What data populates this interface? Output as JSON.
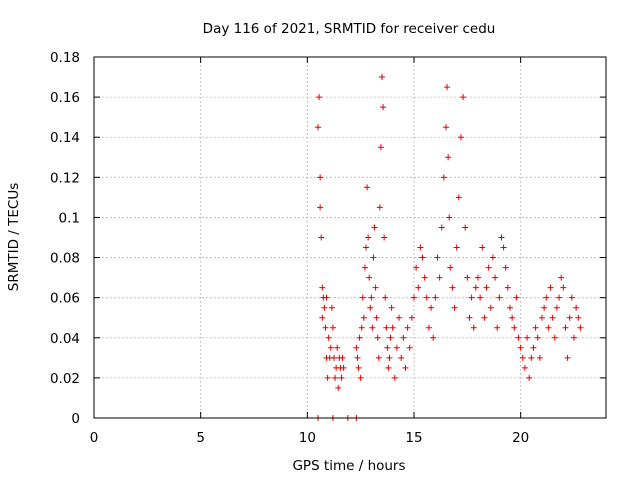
{
  "chart_data": {
    "type": "scatter",
    "title": "Day 116 of 2021, SRMTID for receiver cedu",
    "xlabel": "GPS time / hours",
    "ylabel": "SRMTID / TECUs",
    "xlim": [
      0,
      24
    ],
    "ylim": [
      0,
      0.18
    ],
    "xticks": [
      0,
      5,
      10,
      15,
      20
    ],
    "yticks": [
      0,
      0.02,
      0.04,
      0.06,
      0.08,
      0.1,
      0.12,
      0.14,
      0.16,
      0.18
    ],
    "xtick_labels": [
      "0",
      "5",
      "10",
      "15",
      "20"
    ],
    "ytick_labels": [
      "0",
      "0.02",
      "0.04",
      "0.06",
      "0.08",
      "0.1",
      "0.12",
      "0.14",
      "0.16",
      "0.18"
    ],
    "grid": true,
    "marker": "+",
    "color": "#e00000",
    "series": [
      {
        "name": "SRMTID",
        "x": [
          10.5,
          10.55,
          10.6,
          10.6,
          10.65,
          10.7,
          10.7,
          10.75,
          10.8,
          10.85,
          10.9,
          10.9,
          10.95,
          11.0,
          11.05,
          11.1,
          11.15,
          11.2,
          11.25,
          11.3,
          11.35,
          11.4,
          11.45,
          11.5,
          11.55,
          11.6,
          11.65,
          11.7,
          12.3,
          12.35,
          12.4,
          12.45,
          12.5,
          12.55,
          12.6,
          12.65,
          12.7,
          12.75,
          12.8,
          12.85,
          12.9,
          12.95,
          13.0,
          13.05,
          13.1,
          13.15,
          13.2,
          13.25,
          13.3,
          13.35,
          13.4,
          13.45,
          13.5,
          13.55,
          13.6,
          13.65,
          13.7,
          13.75,
          13.8,
          13.85,
          13.9,
          13.95,
          14.0,
          14.1,
          14.2,
          14.3,
          14.4,
          14.5,
          14.6,
          14.7,
          14.8,
          14.9,
          15.0,
          15.1,
          15.2,
          15.3,
          15.4,
          15.5,
          15.6,
          15.7,
          15.8,
          15.9,
          16.0,
          16.1,
          16.2,
          16.3,
          16.4,
          16.5,
          16.55,
          16.6,
          16.65,
          16.7,
          16.8,
          16.9,
          17.0,
          17.1,
          17.2,
          17.3,
          17.4,
          17.5,
          17.6,
          17.7,
          17.8,
          17.9,
          18.0,
          18.1,
          18.2,
          18.3,
          18.4,
          18.5,
          18.6,
          18.7,
          18.8,
          18.9,
          19.0,
          19.1,
          19.2,
          19.3,
          19.4,
          19.5,
          19.6,
          19.7,
          19.8,
          19.9,
          20.0,
          20.1,
          20.2,
          20.3,
          20.4,
          20.5,
          20.6,
          20.7,
          20.8,
          20.9,
          21.0,
          21.1,
          21.2,
          21.3,
          21.4,
          21.5,
          21.6,
          21.7,
          21.8,
          21.9,
          22.0,
          22.1,
          22.2,
          22.3,
          22.4,
          22.5,
          22.6,
          22.7,
          22.8,
          10.5,
          11.2,
          11.9,
          12.3
        ],
        "y": [
          0.145,
          0.16,
          0.12,
          0.105,
          0.09,
          0.065,
          0.05,
          0.06,
          0.055,
          0.045,
          0.06,
          0.03,
          0.02,
          0.04,
          0.03,
          0.035,
          0.055,
          0.045,
          0.03,
          0.02,
          0.025,
          0.035,
          0.015,
          0.03,
          0.025,
          0.02,
          0.03,
          0.025,
          0.035,
          0.03,
          0.025,
          0.04,
          0.02,
          0.045,
          0.06,
          0.05,
          0.075,
          0.085,
          0.115,
          0.09,
          0.07,
          0.055,
          0.06,
          0.045,
          0.08,
          0.095,
          0.065,
          0.05,
          0.04,
          0.03,
          0.105,
          0.135,
          0.17,
          0.155,
          0.09,
          0.06,
          0.045,
          0.035,
          0.025,
          0.03,
          0.04,
          0.055,
          0.045,
          0.02,
          0.035,
          0.05,
          0.03,
          0.04,
          0.025,
          0.045,
          0.035,
          0.05,
          0.06,
          0.075,
          0.065,
          0.085,
          0.08,
          0.07,
          0.06,
          0.045,
          0.055,
          0.04,
          0.06,
          0.08,
          0.07,
          0.095,
          0.12,
          0.145,
          0.165,
          0.13,
          0.1,
          0.075,
          0.065,
          0.055,
          0.085,
          0.11,
          0.14,
          0.16,
          0.095,
          0.07,
          0.05,
          0.06,
          0.045,
          0.065,
          0.07,
          0.06,
          0.085,
          0.05,
          0.065,
          0.075,
          0.055,
          0.08,
          0.07,
          0.045,
          0.06,
          0.09,
          0.085,
          0.075,
          0.065,
          0.055,
          0.05,
          0.045,
          0.06,
          0.04,
          0.035,
          0.03,
          0.025,
          0.04,
          0.02,
          0.03,
          0.035,
          0.045,
          0.04,
          0.03,
          0.05,
          0.055,
          0.06,
          0.045,
          0.065,
          0.05,
          0.04,
          0.055,
          0.06,
          0.07,
          0.065,
          0.045,
          0.03,
          0.05,
          0.06,
          0.04,
          0.055,
          0.05,
          0.045,
          0.0,
          0.0,
          0.0,
          0.0
        ]
      }
    ]
  }
}
